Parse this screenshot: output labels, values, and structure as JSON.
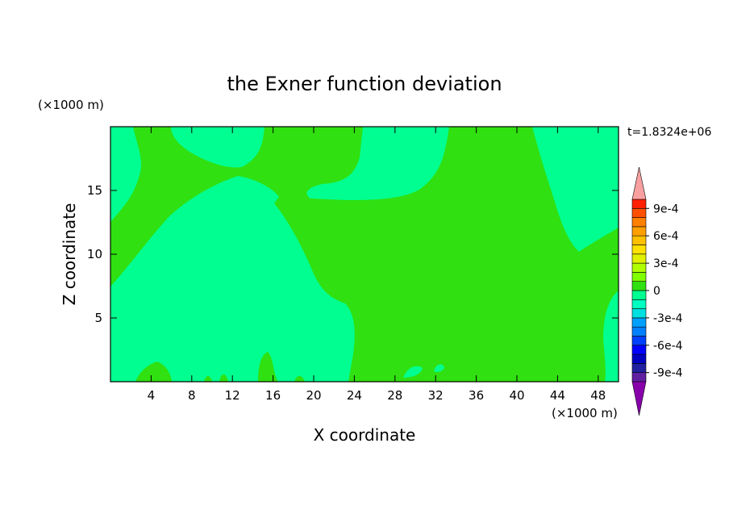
{
  "chart_data": {
    "type": "contour",
    "title": "the Exner function deviation",
    "x_label": "X coordinate",
    "y_label": "Z coordinate",
    "x_unit": "(×1000 m)",
    "y_unit": "(×1000 m)",
    "annotation": "t=1.8324e+06",
    "xlim": [
      0,
      50
    ],
    "ylim": [
      0,
      20
    ],
    "xticks": [
      4,
      8,
      12,
      16,
      20,
      24,
      28,
      32,
      36,
      40,
      44,
      48
    ],
    "yticks": [
      5,
      10,
      15
    ],
    "colorbar": {
      "levels": [
        -0.001,
        -0.0009,
        -0.0008,
        -0.0007,
        -0.0006,
        -0.0005,
        -0.0004,
        -0.0003,
        -0.0002,
        -0.0001,
        0,
        0.0001,
        0.0002,
        0.0003,
        0.0004,
        0.0005,
        0.0006,
        0.0007,
        0.0008,
        0.0009,
        0.001
      ],
      "colors": [
        "#6020a0",
        "#2020a0",
        "#0000c0",
        "#0000ff",
        "#0040ff",
        "#0080ff",
        "#00a0ff",
        "#00e0e0",
        "#00ffc0",
        "#00ff90",
        "#30e010",
        "#80ff00",
        "#b0ff00",
        "#e0f000",
        "#ffe000",
        "#ffc000",
        "#ffa000",
        "#ff8000",
        "#ff5000",
        "#ff2000"
      ],
      "under_color": "#8800aa",
      "over_color": "#f8a0a0",
      "ticks": [
        {
          "value": 0.0009,
          "label": "9e-4"
        },
        {
          "value": 0.0006,
          "label": "6e-4"
        },
        {
          "value": 0.0003,
          "label": "3e-4"
        },
        0,
        {
          "value": -0.0003,
          "label": "-3e-4"
        },
        {
          "value": -0.0006,
          "label": "-6e-4"
        },
        {
          "value": -0.0009,
          "label": "-9e-4"
        }
      ]
    }
  }
}
